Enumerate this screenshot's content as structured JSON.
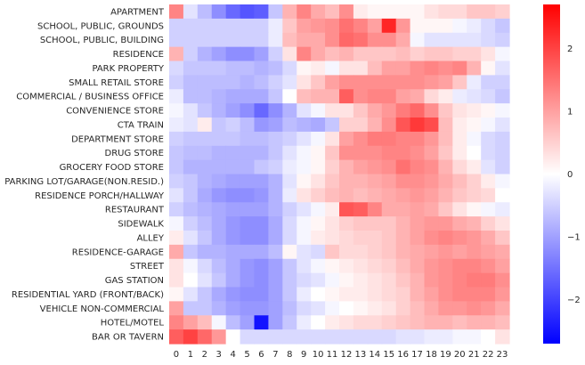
{
  "chart_data": {
    "type": "heatmap",
    "title": "",
    "xlabel": "",
    "ylabel": "",
    "x": [
      "0",
      "1",
      "2",
      "3",
      "4",
      "5",
      "6",
      "7",
      "8",
      "9",
      "10",
      "11",
      "12",
      "13",
      "14",
      "15",
      "16",
      "17",
      "18",
      "19",
      "20",
      "21",
      "22",
      "23"
    ],
    "y": [
      "APARTMENT",
      "SCHOOL, PUBLIC, GROUNDS",
      "SCHOOL, PUBLIC, BUILDING",
      "RESIDENCE",
      "PARK PROPERTY",
      "SMALL RETAIL STORE",
      "COMMERCIAL / BUSINESS OFFICE",
      "CONVENIENCE STORE",
      "CTA TRAIN",
      "DEPARTMENT STORE",
      "DRUG STORE",
      "GROCERY FOOD STORE",
      "PARKING LOT/GARAGE(NON.RESID.)",
      "RESIDENCE PORCH/HALLWAY",
      "RESTAURANT",
      "SIDEWALK",
      "ALLEY",
      "RESIDENCE-GARAGE",
      "STREET",
      "GAS STATION",
      "RESIDENTIAL YARD (FRONT/BACK)",
      "VEHICLE NON-COMMERCIAL",
      "HOTEL/MOTEL",
      "BAR OR TAVERN"
    ],
    "values": [
      [
        1.3,
        -0.3,
        -0.7,
        -1.2,
        -1.6,
        -1.8,
        -1.7,
        -0.6,
        0.8,
        1.3,
        0.9,
        0.7,
        1.2,
        0.2,
        0.1,
        0.1,
        0.1,
        0.1,
        0.3,
        0.4,
        0.4,
        0.6,
        0.6,
        0.5
      ],
      [
        -0.5,
        -0.5,
        -0.5,
        -0.5,
        -0.5,
        -0.5,
        -0.5,
        -0.2,
        0.6,
        1.0,
        1.1,
        1.2,
        1.5,
        1.3,
        1.0,
        2.3,
        1.1,
        0.1,
        0.1,
        0.1,
        -0.1,
        -0.2,
        -0.4,
        -0.6
      ],
      [
        -0.5,
        -0.5,
        -0.5,
        -0.5,
        -0.5,
        -0.5,
        -0.5,
        -0.2,
        0.7,
        0.9,
        0.9,
        1.2,
        1.6,
        1.5,
        1.2,
        1.2,
        0.9,
        -0.1,
        -0.3,
        -0.3,
        -0.3,
        -0.3,
        -0.4,
        -0.5
      ],
      [
        0.8,
        -0.5,
        -0.8,
        -1.0,
        -1.2,
        -1.2,
        -1.0,
        -0.5,
        0.3,
        1.3,
        0.9,
        0.7,
        0.8,
        0.6,
        0.6,
        0.6,
        0.7,
        0.5,
        0.6,
        0.6,
        0.5,
        0.5,
        0.3,
        -0.1
      ],
      [
        -0.4,
        -0.6,
        -0.6,
        -0.6,
        -0.7,
        -0.7,
        -0.8,
        -0.7,
        -0.4,
        0.1,
        0.2,
        -0.1,
        0.3,
        0.3,
        0.7,
        1.0,
        1.0,
        1.2,
        1.3,
        1.2,
        1.3,
        0.8,
        0.1,
        -0.3
      ],
      [
        -0.5,
        -0.7,
        -0.7,
        -0.7,
        -0.7,
        -0.8,
        -0.7,
        -0.5,
        -0.3,
        0.3,
        0.6,
        1.0,
        1.2,
        1.2,
        1.2,
        1.2,
        1.2,
        1.2,
        1.1,
        1.0,
        0.6,
        -0.2,
        -0.5,
        -0.5
      ],
      [
        -0.2,
        -0.7,
        -0.7,
        -0.8,
        -0.9,
        -0.9,
        -0.9,
        -0.6,
        0.0,
        0.7,
        0.8,
        0.8,
        1.7,
        1.2,
        1.3,
        1.3,
        1.0,
        0.9,
        0.4,
        0.2,
        -0.2,
        -0.3,
        -0.4,
        -0.6
      ],
      [
        -0.1,
        -0.3,
        -0.6,
        -0.8,
        -1.0,
        -1.2,
        -1.6,
        -1.2,
        -0.8,
        -0.3,
        -0.1,
        0.3,
        0.3,
        0.6,
        0.9,
        1.1,
        1.4,
        1.6,
        1.2,
        0.6,
        0.3,
        0.2,
        0.1,
        -0.1
      ],
      [
        -0.2,
        -0.3,
        0.2,
        -0.6,
        -0.5,
        -0.7,
        -1.1,
        -1.0,
        -0.7,
        -0.8,
        -0.9,
        -0.6,
        0.5,
        0.5,
        0.8,
        1.2,
        1.8,
        2.1,
        1.9,
        0.7,
        0.2,
        0.1,
        -0.1,
        -0.3
      ],
      [
        -0.5,
        -0.6,
        -0.6,
        -0.6,
        -0.6,
        -0.7,
        -0.7,
        -0.6,
        -0.5,
        -0.3,
        -0.1,
        0.3,
        1.0,
        1.2,
        1.4,
        1.4,
        1.3,
        1.3,
        1.1,
        0.7,
        0.2,
        -0.1,
        -0.4,
        -0.5
      ],
      [
        -0.6,
        -0.7,
        -0.7,
        -0.8,
        -0.8,
        -0.8,
        -0.8,
        -0.6,
        -0.3,
        -0.1,
        0.1,
        0.6,
        1.2,
        1.2,
        1.2,
        1.3,
        1.3,
        1.2,
        1.0,
        0.6,
        0.2,
        0.0,
        -0.4,
        -0.5
      ],
      [
        -0.6,
        -0.8,
        -0.8,
        -0.8,
        -0.8,
        -0.8,
        -0.6,
        -0.5,
        -0.2,
        -0.1,
        0.1,
        0.5,
        0.8,
        1.0,
        1.1,
        1.2,
        1.5,
        1.3,
        1.2,
        0.8,
        0.4,
        0.2,
        -0.3,
        -0.5
      ],
      [
        -0.5,
        -0.6,
        -0.8,
        -0.9,
        -1.0,
        -1.0,
        -1.0,
        -0.8,
        -0.3,
        0.1,
        0.3,
        0.6,
        0.8,
        0.8,
        0.9,
        1.0,
        1.2,
        1.2,
        1.1,
        0.9,
        0.7,
        0.5,
        0.2,
        -0.1
      ],
      [
        -0.3,
        -0.6,
        -0.9,
        -1.1,
        -1.2,
        -1.2,
        -1.1,
        -0.8,
        -0.2,
        0.3,
        0.5,
        0.7,
        0.8,
        0.7,
        0.8,
        0.9,
        1.0,
        1.1,
        1.0,
        0.8,
        0.6,
        0.5,
        0.4,
        0.0
      ],
      [
        -0.5,
        -0.7,
        -0.8,
        -0.9,
        -1.0,
        -1.0,
        -1.0,
        -0.8,
        -0.5,
        -0.3,
        -0.1,
        0.2,
        1.8,
        1.7,
        1.3,
        0.9,
        0.9,
        1.0,
        0.9,
        0.6,
        0.3,
        0.1,
        -0.1,
        -0.2
      ],
      [
        -0.1,
        -0.5,
        -0.7,
        -0.9,
        -1.1,
        -1.2,
        -1.2,
        -0.9,
        -0.4,
        -0.1,
        0.1,
        0.3,
        0.5,
        0.6,
        0.6,
        0.6,
        0.8,
        1.0,
        1.1,
        1.1,
        0.9,
        0.8,
        0.5,
        0.3
      ],
      [
        0.2,
        -0.3,
        -0.6,
        -0.9,
        -1.1,
        -1.2,
        -1.2,
        -0.9,
        -0.4,
        -0.1,
        0.2,
        0.3,
        0.4,
        0.5,
        0.5,
        0.6,
        0.8,
        1.0,
        1.2,
        1.3,
        1.2,
        1.1,
        0.9,
        0.6
      ],
      [
        0.9,
        -0.6,
        -0.8,
        -0.8,
        -0.9,
        -0.9,
        -0.9,
        -0.7,
        0.1,
        -0.3,
        -0.4,
        0.6,
        0.4,
        0.4,
        0.5,
        0.6,
        0.8,
        0.9,
        1.0,
        1.1,
        1.0,
        1.1,
        1.0,
        0.9
      ],
      [
        0.3,
        -0.1,
        -0.4,
        -0.7,
        -0.9,
        -1.1,
        -1.2,
        -1.0,
        -0.6,
        -0.3,
        -0.1,
        0.1,
        0.2,
        0.3,
        0.4,
        0.5,
        0.7,
        0.9,
        1.1,
        1.2,
        1.3,
        1.3,
        1.2,
        1.0
      ],
      [
        0.3,
        0.0,
        -0.3,
        -0.6,
        -0.9,
        -1.1,
        -1.2,
        -1.0,
        -0.6,
        -0.4,
        -0.3,
        -0.1,
        0.1,
        0.2,
        0.3,
        0.4,
        0.6,
        0.8,
        1.1,
        1.2,
        1.3,
        1.4,
        1.4,
        1.2
      ],
      [
        0.1,
        -0.3,
        -0.6,
        -0.9,
        -1.1,
        -1.2,
        -1.2,
        -1.0,
        -0.6,
        -0.2,
        0.0,
        0.1,
        0.2,
        0.2,
        0.3,
        0.4,
        0.5,
        0.8,
        1.0,
        1.2,
        1.3,
        1.3,
        1.3,
        1.1
      ],
      [
        1.0,
        -0.6,
        -0.6,
        -0.8,
        -1.0,
        -1.1,
        -1.1,
        -1.0,
        -0.7,
        -0.4,
        -0.3,
        -0.1,
        0.0,
        0.1,
        0.2,
        0.3,
        0.5,
        0.7,
        0.9,
        1.1,
        1.1,
        1.2,
        1.1,
        0.9
      ],
      [
        1.3,
        1.0,
        0.7,
        -0.1,
        -0.7,
        -1.0,
        -2.5,
        -1.0,
        -0.6,
        -0.2,
        0.0,
        0.2,
        0.3,
        0.4,
        0.4,
        0.5,
        0.6,
        0.7,
        0.8,
        0.8,
        0.7,
        0.8,
        0.8,
        0.7
      ],
      [
        1.7,
        2.0,
        1.6,
        1.1,
        0.0,
        -0.4,
        -0.4,
        -0.4,
        -0.4,
        -0.4,
        -0.4,
        -0.4,
        -0.4,
        -0.4,
        -0.4,
        -0.4,
        -0.3,
        -0.3,
        -0.2,
        -0.2,
        -0.1,
        -0.1,
        0.0,
        0.3
      ]
    ],
    "colorbar": {
      "colormap": "bwr",
      "vmin": -2.7,
      "vmax": 2.7,
      "ticks": [
        -2,
        -1,
        0,
        1,
        2
      ]
    },
    "grid": false,
    "legend": "none"
  }
}
